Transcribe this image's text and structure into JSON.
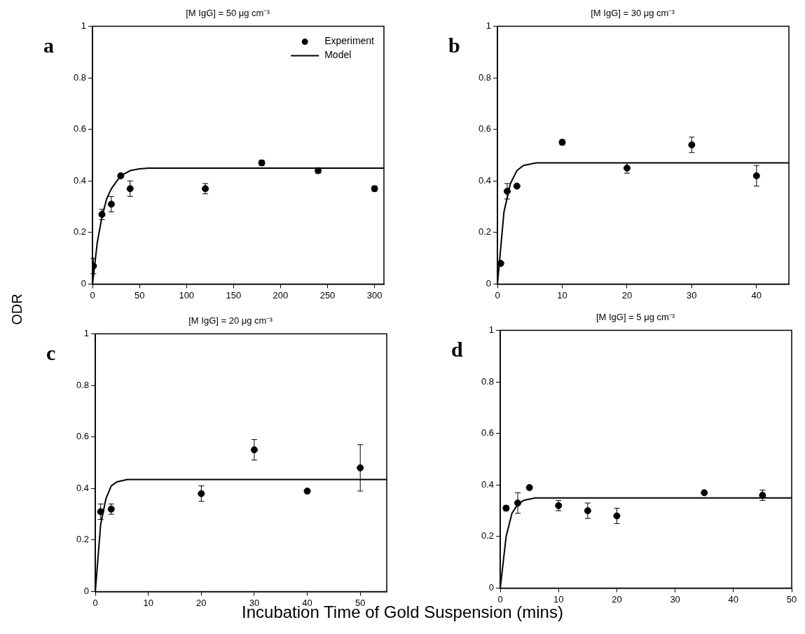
{
  "chart_data": [
    {
      "type": "scatter",
      "title": "[M IgG] = 50 μg cm⁻³",
      "xlabel": "Incubation Time of Gold Suspension (mins)",
      "ylabel": "ODR",
      "annotations": [
        "a"
      ],
      "xlim": [
        0,
        310
      ],
      "xticks": [
        0,
        50,
        100,
        150,
        200,
        250,
        300
      ],
      "ylim": [
        0,
        1
      ],
      "yticks": [
        0,
        0.2,
        0.4,
        0.6,
        0.8,
        1.0
      ],
      "grid": false,
      "legend": "top right",
      "series": [
        {
          "name": "Experiment",
          "type": "scatter",
          "marker": "circle",
          "color": "#000000",
          "x": [
            1,
            10,
            20,
            30,
            40,
            120,
            180,
            240,
            300
          ],
          "values": [
            0.07,
            0.27,
            0.31,
            0.42,
            0.37,
            0.37,
            0.47,
            0.44,
            0.37
          ],
          "errors": [
            0.03,
            0.02,
            0.03,
            null,
            0.03,
            0.02,
            0.01,
            0.01,
            0.01
          ]
        },
        {
          "name": "Model",
          "type": "line",
          "marker": "none",
          "line_style": "solid",
          "color": "#000000",
          "x": [
            0,
            5,
            10,
            15,
            20,
            30,
            40,
            50,
            60,
            310
          ],
          "values": [
            0,
            0.16,
            0.26,
            0.33,
            0.37,
            0.42,
            0.44,
            0.447,
            0.45,
            0.45
          ]
        }
      ]
    },
    {
      "type": "scatter",
      "title": "[M IgG] = 30 μg cm⁻³",
      "annotations": [
        "b"
      ],
      "xlim": [
        0,
        45
      ],
      "xticks": [
        0,
        10,
        20,
        30,
        40
      ],
      "ylim": [
        0,
        1
      ],
      "yticks": [
        0,
        0.2,
        0.4,
        0.6,
        0.8,
        1.0
      ],
      "grid": false,
      "series": [
        {
          "type": "scatter",
          "marker": "circle",
          "color": "#000000",
          "x": [
            0.5,
            1.5,
            3,
            10,
            20,
            30,
            40
          ],
          "values": [
            0.08,
            0.36,
            0.38,
            0.55,
            0.45,
            0.54,
            0.42
          ],
          "errors": [
            null,
            0.03,
            null,
            0.01,
            0.02,
            0.03,
            0.04
          ]
        },
        {
          "type": "line",
          "marker": "none",
          "line_style": "solid",
          "color": "#000000",
          "x": [
            0,
            1,
            2,
            3,
            4,
            6,
            45
          ],
          "values": [
            0,
            0.28,
            0.39,
            0.44,
            0.46,
            0.47,
            0.47
          ]
        }
      ]
    },
    {
      "type": "scatter",
      "title": "[M IgG] = 20 μg cm⁻³",
      "annotations": [
        "c"
      ],
      "xlim": [
        0,
        55
      ],
      "xticks": [
        0,
        10,
        20,
        30,
        40,
        50
      ],
      "ylim": [
        0,
        1
      ],
      "yticks": [
        0,
        0.2,
        0.4,
        0.6,
        0.8,
        1.0
      ],
      "grid": false,
      "series": [
        {
          "type": "scatter",
          "marker": "circle",
          "color": "#000000",
          "x": [
            1,
            3,
            20,
            30,
            40,
            50
          ],
          "values": [
            0.31,
            0.32,
            0.38,
            0.55,
            0.39,
            0.48
          ],
          "errors": [
            0.03,
            0.02,
            0.03,
            0.04,
            null,
            0.09
          ]
        },
        {
          "type": "line",
          "marker": "none",
          "line_style": "solid",
          "color": "#000000",
          "x": [
            0,
            1,
            2,
            3,
            4,
            6,
            55
          ],
          "values": [
            0,
            0.26,
            0.36,
            0.41,
            0.425,
            0.435,
            0.435
          ]
        }
      ]
    },
    {
      "type": "scatter",
      "title": "[M IgG] = 5 μg cm⁻³",
      "annotations": [
        "d"
      ],
      "xlim": [
        0,
        50
      ],
      "xticks": [
        0,
        10,
        20,
        30,
        40,
        50
      ],
      "ylim": [
        0,
        1
      ],
      "yticks": [
        0,
        0.2,
        0.4,
        0.6,
        0.8,
        1.0
      ],
      "grid": false,
      "series": [
        {
          "type": "scatter",
          "marker": "circle",
          "color": "#000000",
          "x": [
            1,
            3,
            5,
            10,
            15,
            20,
            35,
            45
          ],
          "values": [
            0.31,
            0.33,
            0.39,
            0.32,
            0.3,
            0.28,
            0.37,
            0.36
          ],
          "errors": [
            0.01,
            0.04,
            null,
            0.02,
            0.03,
            0.03,
            null,
            0.02
          ]
        },
        {
          "type": "line",
          "marker": "none",
          "line_style": "solid",
          "color": "#000000",
          "x": [
            0,
            1,
            2,
            3,
            4,
            6,
            50
          ],
          "values": [
            0,
            0.2,
            0.29,
            0.325,
            0.34,
            0.35,
            0.35
          ]
        }
      ]
    }
  ]
}
